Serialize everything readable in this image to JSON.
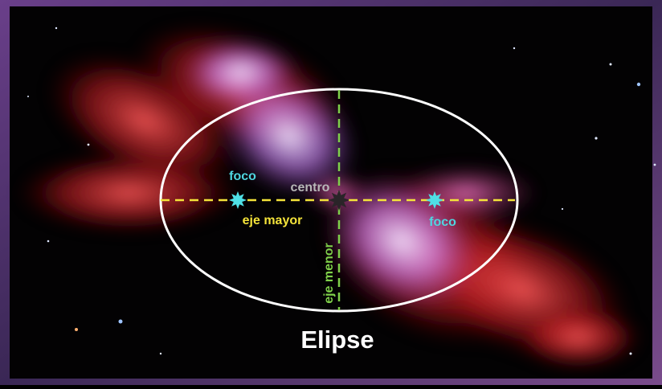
{
  "title": "Elipse",
  "labels": {
    "center": "centro",
    "major_axis": "eje mayor",
    "minor_axis": "eje menor",
    "foci": [
      "foco",
      "foco"
    ]
  }
}
